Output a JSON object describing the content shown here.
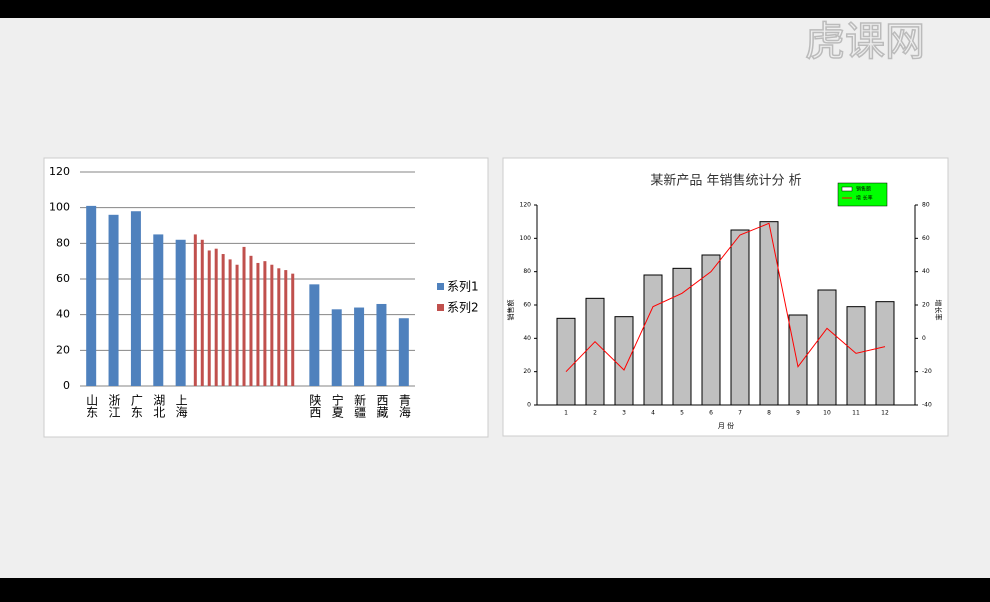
{
  "watermark": "虎课网",
  "chart_data": [
    {
      "type": "bar",
      "categories": [
        "山东",
        "浙江",
        "广东",
        "湖北",
        "上海",
        null,
        null,
        null,
        null,
        null,
        null,
        null,
        null,
        null,
        null,
        null,
        null,
        null,
        null,
        null,
        null,
        "陕西",
        "宁夏",
        "新疆",
        "西藏",
        "青海"
      ],
      "series": [
        {
          "name": "系列1",
          "color": "#4f81bd",
          "values": [
            101,
            96,
            98,
            85,
            82,
            null,
            null,
            null,
            null,
            null,
            null,
            null,
            null,
            null,
            null,
            null,
            null,
            null,
            null,
            null,
            null,
            57,
            43,
            44,
            46,
            38
          ]
        },
        {
          "name": "系列2",
          "color": "#c0504d",
          "values": [
            null,
            null,
            null,
            null,
            null,
            85,
            82,
            76,
            77,
            74,
            71,
            68,
            78,
            73,
            69,
            70,
            68,
            66,
            65,
            63,
            null,
            null,
            null,
            null,
            null,
            null
          ]
        }
      ],
      "ylim": [
        0,
        120
      ],
      "yticks": [
        0,
        20,
        40,
        60,
        80,
        100,
        120
      ],
      "grid": true,
      "legend": "right"
    },
    {
      "type": "bar-line",
      "title": "某新产品 年销售统计分 析",
      "x_label": "月 份",
      "y_label": "销售额",
      "y2_label": "增长率",
      "categories": [
        "1",
        "2",
        "3",
        "4",
        "5",
        "6",
        "7",
        "8",
        "9",
        "10",
        "11",
        "12"
      ],
      "series": [
        {
          "name": "销售额",
          "color": "#c0c0c0",
          "values": [
            52,
            64,
            53,
            78,
            82,
            90,
            105,
            110,
            54,
            69,
            59,
            62
          ]
        },
        {
          "name": "增 长率",
          "color": "#ff0000",
          "axis": "y2",
          "values": [
            -20,
            -2,
            -19,
            19,
            27,
            40,
            62,
            69,
            -17,
            6,
            -9,
            -5
          ]
        }
      ],
      "ylim": [
        0,
        120
      ],
      "yticks": [
        0,
        20,
        40,
        60,
        80,
        100,
        120
      ],
      "y2lim": [
        -40,
        80
      ],
      "y2ticks": [
        -40,
        -20,
        0,
        20,
        40,
        60,
        80
      ],
      "legend": "top-right",
      "legend_color": "#00ff00"
    }
  ]
}
